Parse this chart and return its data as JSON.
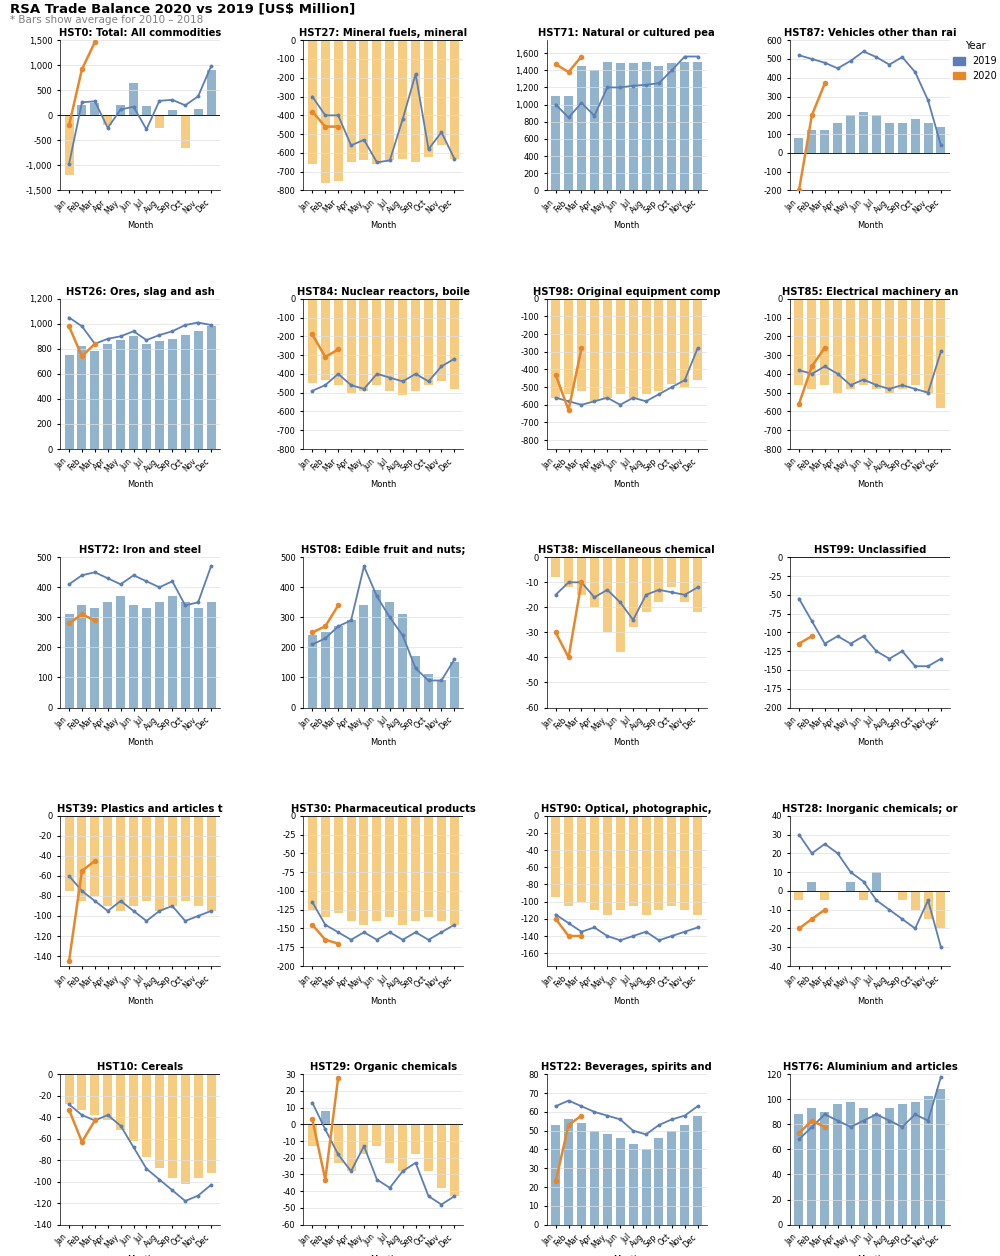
{
  "title": "RSA Trade Balance 2020 vs 2019 [US$ Million]",
  "subtitle": "* Bars show average for 2010 – 2018",
  "months": [
    "Jan",
    "Feb",
    "Mar",
    "Apr",
    "May",
    "Jun",
    "Jul",
    "Aug",
    "Sep",
    "Oct",
    "Nov",
    "Dec"
  ],
  "bar_color_pos": "#7EA6C4",
  "bar_color_neg": "#F5C36A",
  "line2019_color": "#5B7FB5",
  "line2020_color": "#E8872A",
  "legend_title": "Year",
  "panels": [
    {
      "title": "HST0: Total: All commodities",
      "bars": [
        -1200,
        200,
        250,
        -200,
        200,
        640,
        180,
        -250,
        100,
        -650,
        130,
        900
      ],
      "line2019": [
        -970,
        260,
        280,
        -250,
        120,
        170,
        -280,
        290,
        310,
        200,
        380,
        980
      ],
      "line2020": [
        -200,
        920,
        1460,
        null,
        null,
        null,
        null,
        null,
        null,
        null,
        null,
        null
      ],
      "ylim": [
        -1500,
        1500
      ],
      "yticks": [
        -1000,
        -500,
        0,
        500,
        1000,
        1500
      ]
    },
    {
      "title": "HST27: Mineral fuels, mineral",
      "bars": [
        -660,
        -760,
        -750,
        -650,
        -640,
        -660,
        -640,
        -630,
        -650,
        -620,
        -560,
        -630
      ],
      "line2019": [
        -300,
        -400,
        -400,
        -560,
        -530,
        -650,
        -640,
        -420,
        -180,
        -580,
        -490,
        -630
      ],
      "line2020": [
        -380,
        -460,
        -460,
        null,
        null,
        null,
        null,
        null,
        null,
        null,
        null,
        null
      ],
      "ylim": [
        -800,
        0
      ],
      "yticks": [
        -800,
        -600,
        -400,
        -200,
        0
      ]
    },
    {
      "title": "HST71: Natural or cultured pea",
      "bars": [
        1100,
        1100,
        1450,
        1400,
        1500,
        1480,
        1480,
        1500,
        1450,
        1480,
        1500,
        1500
      ],
      "line2019": [
        1000,
        850,
        1020,
        870,
        1200,
        1200,
        1220,
        1230,
        1250,
        1400,
        1560,
        1560
      ],
      "line2020": [
        1470,
        1380,
        1560,
        null,
        null,
        null,
        null,
        null,
        null,
        null,
        null,
        null
      ],
      "ylim": [
        0,
        1750
      ],
      "yticks": [
        0,
        500,
        1000,
        1500
      ]
    },
    {
      "title": "HST87: Vehicles other than rai",
      "bars": [
        80,
        120,
        120,
        160,
        200,
        220,
        200,
        160,
        160,
        180,
        160,
        140
      ],
      "line2019": [
        520,
        500,
        480,
        450,
        490,
        540,
        510,
        470,
        510,
        430,
        280,
        40
      ],
      "line2020": [
        -200,
        200,
        370,
        null,
        null,
        null,
        null,
        null,
        null,
        null,
        null,
        null
      ],
      "ylim": [
        -200,
        600
      ],
      "yticks": [
        -200,
        0,
        200,
        400,
        600
      ]
    },
    {
      "title": "HST26: Ores, slag and ash",
      "bars": [
        750,
        820,
        780,
        840,
        870,
        900,
        840,
        860,
        880,
        910,
        940,
        980
      ],
      "line2019": [
        1050,
        980,
        840,
        880,
        900,
        940,
        870,
        910,
        940,
        990,
        1010,
        990
      ],
      "line2020": [
        980,
        740,
        840,
        null,
        null,
        null,
        null,
        null,
        null,
        null,
        null,
        null
      ],
      "ylim": [
        0,
        1200
      ],
      "yticks": [
        0,
        200,
        400,
        600,
        800,
        1000,
        1200
      ]
    },
    {
      "title": "HST84: Nuclear reactors, boile",
      "bars": [
        -450,
        -430,
        -460,
        -500,
        -490,
        -460,
        -490,
        -510,
        -490,
        -460,
        -440,
        -480
      ],
      "line2019": [
        -490,
        -460,
        -400,
        -460,
        -480,
        -400,
        -420,
        -440,
        -400,
        -440,
        -360,
        -320
      ],
      "line2020": [
        -190,
        -310,
        -270,
        null,
        null,
        null,
        null,
        null,
        null,
        null,
        null,
        null
      ],
      "ylim": [
        -800,
        0
      ],
      "yticks": [
        -800,
        -600,
        -400,
        -200,
        0
      ]
    },
    {
      "title": "HST98: Original equipment comp",
      "bars": [
        -560,
        -540,
        -520,
        -580,
        -560,
        -540,
        -560,
        -540,
        -520,
        -480,
        -500,
        -460
      ],
      "line2019": [
        -560,
        -580,
        -600,
        -580,
        -560,
        -600,
        -560,
        -580,
        -540,
        -500,
        -460,
        -280
      ],
      "line2020": [
        -430,
        -630,
        -280,
        null,
        null,
        null,
        null,
        null,
        null,
        null,
        null,
        null
      ],
      "ylim": [
        -850,
        0
      ],
      "yticks": [
        -800,
        -600,
        -400,
        -200,
        0
      ]
    },
    {
      "title": "HST85: Electrical machinery an",
      "bars": [
        -460,
        -480,
        -460,
        -500,
        -480,
        -460,
        -480,
        -500,
        -480,
        -460,
        -500,
        -580
      ],
      "line2019": [
        -380,
        -400,
        -360,
        -400,
        -460,
        -430,
        -460,
        -480,
        -460,
        -480,
        -500,
        -280
      ],
      "line2020": [
        -560,
        -360,
        -260,
        null,
        null,
        null,
        null,
        null,
        null,
        null,
        null,
        null
      ],
      "ylim": [
        -800,
        0
      ],
      "yticks": [
        -800,
        -600,
        -400,
        -200,
        0
      ]
    },
    {
      "title": "HST72: Iron and steel",
      "bars": [
        310,
        340,
        330,
        350,
        370,
        340,
        330,
        350,
        370,
        350,
        330,
        350
      ],
      "line2019": [
        410,
        440,
        450,
        430,
        410,
        440,
        420,
        400,
        420,
        340,
        350,
        470
      ],
      "line2020": [
        280,
        310,
        290,
        null,
        null,
        null,
        null,
        null,
        null,
        null,
        null,
        null
      ],
      "ylim": [
        0,
        500
      ],
      "yticks": [
        0,
        100,
        200,
        300,
        400,
        500
      ]
    },
    {
      "title": "HST08: Edible fruit and nuts;",
      "bars": [
        240,
        250,
        270,
        290,
        340,
        390,
        350,
        310,
        170,
        110,
        90,
        150
      ],
      "line2019": [
        210,
        230,
        270,
        290,
        470,
        370,
        300,
        240,
        130,
        90,
        90,
        160
      ],
      "line2020": [
        250,
        270,
        340,
        null,
        null,
        null,
        null,
        null,
        null,
        null,
        null,
        null
      ],
      "ylim": [
        0,
        500
      ],
      "yticks": [
        0,
        100,
        200,
        300,
        400,
        500
      ]
    },
    {
      "title": "HST38: Miscellaneous chemical",
      "bars": [
        -8,
        -12,
        -15,
        -20,
        -30,
        -38,
        -28,
        -22,
        -18,
        -12,
        -18,
        -22
      ],
      "line2019": [
        -15,
        -10,
        -10,
        -16,
        -13,
        -18,
        -25,
        -15,
        -13,
        -14,
        -15,
        -12
      ],
      "line2020": [
        -30,
        -40,
        -10,
        null,
        null,
        null,
        null,
        null,
        null,
        null,
        null,
        null
      ],
      "ylim": [
        -60,
        0
      ],
      "yticks": [
        -60,
        -40,
        -20,
        0
      ]
    },
    {
      "title": "HST99: Unclassified",
      "bars": [
        0,
        0,
        0,
        0,
        0,
        0,
        0,
        0,
        0,
        0,
        0,
        0
      ],
      "line2019": [
        -55,
        -85,
        -115,
        -105,
        -115,
        -105,
        -125,
        -135,
        -125,
        -145,
        -145,
        -135
      ],
      "line2020": [
        -115,
        -105,
        null,
        null,
        null,
        null,
        null,
        null,
        null,
        null,
        null,
        null
      ],
      "ylim": [
        -200,
        0
      ],
      "yticks": [
        -200,
        -150,
        -100,
        -50,
        0
      ]
    },
    {
      "title": "HST39: Plastics and articles t",
      "bars": [
        -75,
        -85,
        -80,
        -90,
        -95,
        -90,
        -85,
        -95,
        -90,
        -85,
        -90,
        -95
      ],
      "line2019": [
        -60,
        -75,
        -85,
        -95,
        -85,
        -95,
        -105,
        -95,
        -90,
        -105,
        -100,
        -95
      ],
      "line2020": [
        -145,
        -55,
        -45,
        null,
        null,
        null,
        null,
        null,
        null,
        null,
        null,
        null
      ],
      "ylim": [
        -150,
        0
      ],
      "yticks": [
        -150,
        -100,
        -50,
        0
      ]
    },
    {
      "title": "HST30: Pharmaceutical products",
      "bars": [
        -125,
        -135,
        -130,
        -140,
        -145,
        -140,
        -135,
        -145,
        -140,
        -135,
        -140,
        -145
      ],
      "line2019": [
        -115,
        -145,
        -155,
        -165,
        -155,
        -165,
        -155,
        -165,
        -155,
        -165,
        -155,
        -145
      ],
      "line2020": [
        -145,
        -165,
        -170,
        null,
        null,
        null,
        null,
        null,
        null,
        null,
        null,
        null
      ],
      "ylim": [
        -200,
        0
      ],
      "yticks": [
        -200,
        -150,
        -100,
        -50,
        0
      ]
    },
    {
      "title": "HST90: Optical, photographic,",
      "bars": [
        -95,
        -105,
        -100,
        -110,
        -115,
        -110,
        -105,
        -115,
        -110,
        -105,
        -110,
        -115
      ],
      "line2019": [
        -115,
        -125,
        -135,
        -130,
        -140,
        -145,
        -140,
        -135,
        -145,
        -140,
        -135,
        -130
      ],
      "line2020": [
        -120,
        -140,
        -140,
        null,
        null,
        null,
        null,
        null,
        null,
        null,
        null,
        null
      ],
      "ylim": [
        -175,
        0
      ],
      "yticks": [
        -150,
        -100,
        -50,
        0
      ]
    },
    {
      "title": "HST28: Inorganic chemicals; or",
      "bars": [
        -5,
        5,
        -5,
        0,
        5,
        -5,
        10,
        0,
        -5,
        -10,
        -15,
        -20
      ],
      "line2019": [
        30,
        20,
        25,
        20,
        10,
        5,
        -5,
        -10,
        -15,
        -20,
        -5,
        -30
      ],
      "line2020": [
        -20,
        -15,
        -10,
        null,
        null,
        null,
        null,
        null,
        null,
        null,
        null,
        null
      ],
      "ylim": [
        -40,
        40
      ],
      "yticks": [
        -40,
        -20,
        0,
        20,
        40
      ]
    },
    {
      "title": "HST10: Cereals",
      "bars": [
        -28,
        -33,
        -38,
        -43,
        -52,
        -62,
        -77,
        -87,
        -97,
        -102,
        -97,
        -92
      ],
      "line2019": [
        -28,
        -38,
        -43,
        -38,
        -48,
        -68,
        -88,
        -98,
        -108,
        -118,
        -113,
        -103
      ],
      "line2020": [
        -33,
        -63,
        -43,
        null,
        null,
        null,
        null,
        null,
        null,
        null,
        null,
        null
      ],
      "ylim": [
        -140,
        0
      ],
      "yticks": [
        -120,
        -80,
        -40,
        0
      ]
    },
    {
      "title": "HST29: Organic chemicals",
      "bars": [
        -13,
        8,
        -23,
        -28,
        -18,
        -13,
        -23,
        -28,
        -18,
        -28,
        -38,
        -43
      ],
      "line2019": [
        13,
        -3,
        -18,
        -28,
        -13,
        -33,
        -38,
        -28,
        -23,
        -43,
        -48,
        -43
      ],
      "line2020": [
        3,
        -33,
        28,
        null,
        null,
        null,
        null,
        null,
        null,
        null,
        null,
        null
      ],
      "ylim": [
        -60,
        30
      ],
      "yticks": [
        -40,
        -20,
        0,
        20
      ]
    },
    {
      "title": "HST22: Beverages, spirits and",
      "bars": [
        53,
        56,
        54,
        50,
        48,
        46,
        43,
        40,
        46,
        50,
        53,
        58
      ],
      "line2019": [
        63,
        66,
        63,
        60,
        58,
        56,
        50,
        48,
        53,
        56,
        58,
        63
      ],
      "line2020": [
        23,
        53,
        58,
        null,
        null,
        null,
        null,
        null,
        null,
        null,
        null,
        null
      ],
      "ylim": [
        0,
        80
      ],
      "yticks": [
        0,
        20,
        40,
        60,
        80
      ]
    },
    {
      "title": "HST76: Aluminium and articles",
      "bars": [
        88,
        93,
        90,
        96,
        98,
        93,
        88,
        93,
        96,
        98,
        103,
        108
      ],
      "line2019": [
        68,
        78,
        88,
        83,
        78,
        83,
        88,
        83,
        78,
        88,
        83,
        118
      ],
      "line2020": [
        73,
        83,
        78,
        null,
        null,
        null,
        null,
        null,
        null,
        null,
        null,
        null
      ],
      "ylim": [
        0,
        120
      ],
      "yticks": [
        0,
        40,
        80,
        120
      ]
    }
  ]
}
